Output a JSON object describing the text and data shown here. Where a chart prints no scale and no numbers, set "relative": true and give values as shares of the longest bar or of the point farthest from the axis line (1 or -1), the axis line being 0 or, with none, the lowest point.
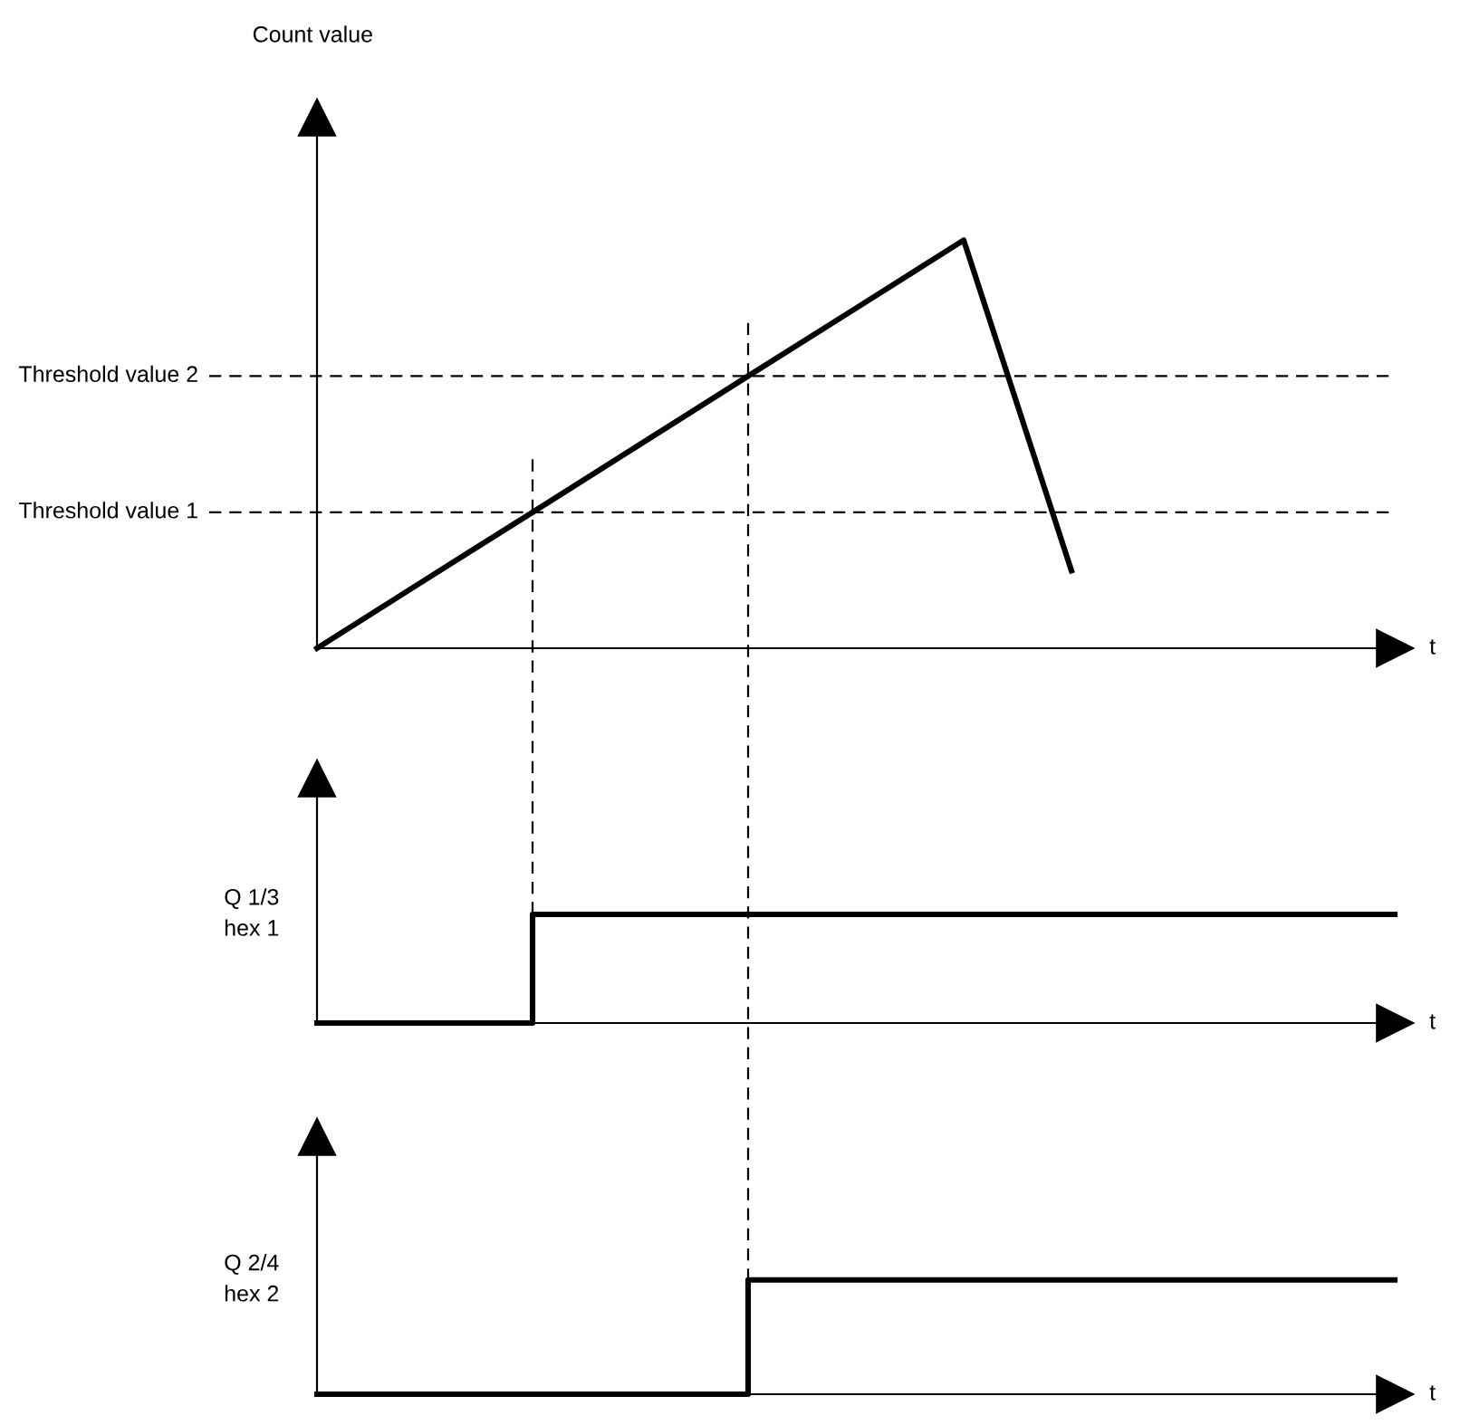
{
  "chart_data": [
    {
      "type": "line",
      "ylabel": "Count value",
      "xlabel": "t",
      "relative": true,
      "categories": [
        null,
        null,
        null,
        null,
        null,
        null,
        null,
        null,
        null,
        null,
        null
      ],
      "series": [
        {
          "color": "#000000",
          "values": [
            0,
            0.167,
            0.333,
            0.5,
            0.667,
            0.833,
            1,
            0.19,
            null,
            null,
            null
          ]
        }
      ],
      "ref_lines": [
        {
          "axis": "y",
          "value": 0.667,
          "label": "Threshold value 2",
          "line_style": "dashed"
        },
        {
          "axis": "y",
          "value": 0.333,
          "label": "Threshold value 1",
          "line_style": "dashed"
        }
      ]
    },
    {
      "type": "step",
      "xlabel": "t",
      "relative": true,
      "categories": [
        null,
        null,
        null,
        null,
        null,
        null,
        null,
        null,
        null,
        null,
        null
      ],
      "series": [
        {
          "color": "#000000",
          "values": [
            0,
            0,
            1,
            1,
            1,
            1,
            1,
            1,
            1,
            1,
            1
          ]
        }
      ],
      "annotations": [
        "Q 1/3\nhex 1"
      ]
    },
    {
      "type": "step",
      "xlabel": "t",
      "relative": true,
      "categories": [
        null,
        null,
        null,
        null,
        null,
        null,
        null,
        null,
        null,
        null,
        null
      ],
      "series": [
        {
          "color": "#000000",
          "values": [
            0,
            0,
            0,
            0,
            1,
            1,
            1,
            1,
            1,
            1,
            1
          ]
        }
      ],
      "annotations": [
        "Q 2/4\nhex 2"
      ]
    }
  ]
}
